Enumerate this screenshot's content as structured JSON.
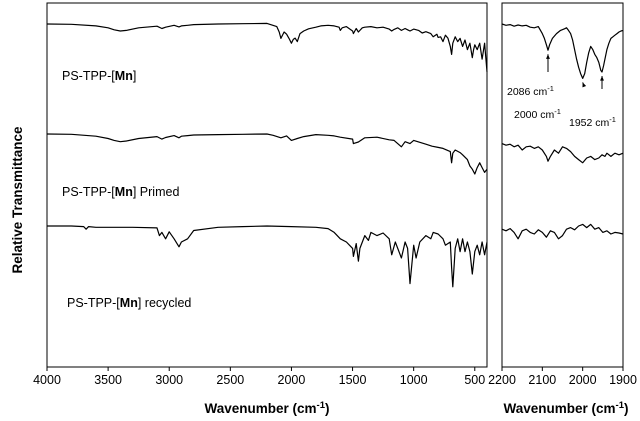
{
  "chart_data": [
    {
      "type": "line",
      "title": "",
      "xlabel": "Wavenumber (cm",
      "xlabel_sup": "-1",
      "xlabel_close": ")",
      "ylabel": "Relative Transmittance",
      "xlim": [
        4000,
        400
      ],
      "x_reversed": true,
      "x_ticks": [
        4000,
        3500,
        3000,
        2500,
        2000,
        1500,
        1000,
        500
      ],
      "y_ticks": false,
      "grid": false,
      "series": [
        {
          "name": "PS-TPP-[Mn]",
          "name_parts": [
            "PS-TPP-[",
            "Mn",
            "]"
          ],
          "offset": 3.0,
          "x": [
            4000,
            3800,
            3600,
            3500,
            3450,
            3400,
            3350,
            3250,
            3100,
            3060,
            3030,
            2960,
            2920,
            2900,
            2850,
            2800,
            2600,
            2400,
            2200,
            2120,
            2100,
            2086,
            2060,
            2040,
            2020,
            2000,
            1985,
            1970,
            1952,
            1930,
            1900,
            1860,
            1800,
            1760,
            1700,
            1650,
            1610,
            1600,
            1585,
            1550,
            1500,
            1493,
            1470,
            1452,
            1440,
            1420,
            1400,
            1350,
            1300,
            1250,
            1200,
            1180,
            1160,
            1130,
            1100,
            1070,
            1050,
            1030,
            1000,
            960,
            930,
            900,
            860,
            840,
            810,
            800,
            780,
            760,
            740,
            720,
            700,
            690,
            680,
            660,
            640,
            620,
            600,
            580,
            560,
            540,
            520,
            510,
            500,
            480,
            460,
            440,
            420,
            400
          ],
          "y": [
            0.5,
            0.49,
            0.44,
            0.38,
            0.32,
            0.28,
            0.3,
            0.38,
            0.43,
            0.36,
            0.4,
            0.46,
            0.41,
            0.44,
            0.46,
            0.48,
            0.5,
            0.51,
            0.52,
            0.42,
            0.25,
            0.05,
            0.25,
            0.18,
            0.05,
            -0.1,
            0.02,
            0.06,
            -0.05,
            0.2,
            0.28,
            0.35,
            0.4,
            0.44,
            0.46,
            0.44,
            0.4,
            0.3,
            0.38,
            0.42,
            0.28,
            0.2,
            0.36,
            0.25,
            0.3,
            0.38,
            0.4,
            0.42,
            0.38,
            0.4,
            0.34,
            0.28,
            0.33,
            0.38,
            0.3,
            0.36,
            0.32,
            0.28,
            0.34,
            0.3,
            0.22,
            0.26,
            0.2,
            0.1,
            0.18,
            0.08,
            0.1,
            -0.05,
            0.15,
            0.06,
            -0.2,
            -0.45,
            -0.1,
            0.1,
            -0.05,
            0.05,
            -0.2,
            0.0,
            -0.3,
            -0.1,
            -0.55,
            -0.3,
            -0.15,
            -0.3,
            -0.1,
            -0.6,
            -0.1,
            -1.0
          ]
        },
        {
          "name": "PS-TPP-[Mn] Primed",
          "name_parts": [
            "PS-TPP-[",
            "Mn",
            "] Primed"
          ],
          "offset": 1.5,
          "x": [
            4000,
            3800,
            3600,
            3500,
            3450,
            3400,
            3350,
            3250,
            3100,
            3060,
            3030,
            2960,
            2920,
            2900,
            2850,
            2800,
            2600,
            2400,
            2200,
            2150,
            2086,
            2040,
            2000,
            1952,
            1900,
            1800,
            1700,
            1650,
            1600,
            1500,
            1493,
            1452,
            1400,
            1300,
            1200,
            1160,
            1100,
            1070,
            1030,
            1000,
            950,
            900,
            850,
            800,
            760,
            700,
            690,
            680,
            660,
            620,
            600,
            560,
            540,
            520,
            500,
            480,
            460,
            440,
            420,
            400
          ],
          "y": [
            0.5,
            0.49,
            0.43,
            0.36,
            0.3,
            0.26,
            0.28,
            0.36,
            0.42,
            0.34,
            0.39,
            0.45,
            0.38,
            0.43,
            0.45,
            0.47,
            0.48,
            0.49,
            0.5,
            0.46,
            0.38,
            0.44,
            0.3,
            0.36,
            0.42,
            0.48,
            0.46,
            0.44,
            0.4,
            0.34,
            0.2,
            0.25,
            0.38,
            0.4,
            0.32,
            0.3,
            0.1,
            0.26,
            0.2,
            0.3,
            0.24,
            0.18,
            0.12,
            0.08,
            0.05,
            -0.05,
            -0.4,
            -0.1,
            0.0,
            -0.08,
            -0.15,
            -0.3,
            -0.5,
            -0.6,
            -0.75,
            -0.55,
            -0.4,
            -0.55,
            -0.7,
            -0.6
          ]
        },
        {
          "name": "PS-TPP-[Mn] recycled",
          "name_parts": [
            "PS-TPP-[",
            "Mn",
            "] recycled"
          ],
          "offset": 0.0,
          "x": [
            4000,
            3800,
            3700,
            3680,
            3660,
            3600,
            3500,
            3400,
            3300,
            3100,
            3080,
            3060,
            3030,
            3000,
            2960,
            2920,
            2900,
            2850,
            2800,
            2600,
            2400,
            2200,
            2000,
            1800,
            1700,
            1650,
            1600,
            1550,
            1500,
            1493,
            1470,
            1452,
            1440,
            1400,
            1370,
            1350,
            1300,
            1250,
            1200,
            1180,
            1150,
            1100,
            1070,
            1050,
            1030,
            1000,
            980,
            950,
            900,
            860,
            840,
            800,
            760,
            740,
            700,
            690,
            680,
            660,
            640,
            620,
            600,
            580,
            560,
            540,
            520,
            500,
            480,
            460,
            440,
            420,
            400
          ],
          "y": [
            0.5,
            0.5,
            0.48,
            0.4,
            0.48,
            0.46,
            0.46,
            0.46,
            0.46,
            0.44,
            0.2,
            0.3,
            0.1,
            0.32,
            0.1,
            -0.15,
            0.0,
            0.1,
            0.36,
            0.46,
            0.48,
            0.5,
            0.48,
            0.46,
            0.42,
            0.3,
            0.1,
            0.0,
            -0.2,
            -0.45,
            -0.05,
            -0.6,
            -0.2,
            0.2,
            0.05,
            0.3,
            0.2,
            0.28,
            0.1,
            -0.4,
            0.0,
            -0.5,
            0.0,
            -0.2,
            -1.3,
            -0.1,
            -0.5,
            0.0,
            0.2,
            0.1,
            0.3,
            0.25,
            0.1,
            -0.1,
            0.0,
            -0.8,
            -1.4,
            -0.2,
            0.1,
            -0.3,
            0.1,
            -0.3,
            0.0,
            -0.3,
            -1.0,
            -0.3,
            -0.1,
            -0.4,
            0.0,
            -0.4,
            0.0
          ]
        }
      ],
      "series_label_style": "text beside each trace"
    },
    {
      "type": "line",
      "title": "",
      "xlabel": "Wavenumber (cm",
      "xlabel_sup": "-1",
      "xlabel_close": ")",
      "xlim": [
        2200,
        1900
      ],
      "x_reversed": true,
      "x_ticks": [
        2200,
        2100,
        2000,
        1900
      ],
      "y_ticks": false,
      "grid": false,
      "series": [
        {
          "name": "PS-TPP-[Mn]",
          "offset": 3.0,
          "x": [
            2200,
            2190,
            2180,
            2170,
            2160,
            2150,
            2140,
            2130,
            2120,
            2110,
            2100,
            2095,
            2090,
            2086,
            2082,
            2075,
            2065,
            2055,
            2045,
            2040,
            2035,
            2030,
            2025,
            2020,
            2015,
            2010,
            2005,
            2000,
            1995,
            1990,
            1985,
            1980,
            1975,
            1970,
            1965,
            1960,
            1955,
            1952,
            1948,
            1945,
            1940,
            1935,
            1930,
            1925,
            1920,
            1915,
            1910,
            1905,
            1900
          ],
          "y": [
            0.5,
            0.46,
            0.48,
            0.43,
            0.47,
            0.44,
            0.46,
            0.4,
            0.38,
            0.42,
            0.2,
            0.05,
            -0.15,
            -0.32,
            -0.15,
            0.05,
            0.2,
            0.3,
            0.35,
            0.38,
            0.3,
            0.2,
            0.0,
            -0.3,
            -0.6,
            -0.85,
            -1.05,
            -1.2,
            -1.05,
            -0.7,
            -0.4,
            -0.2,
            -0.3,
            -0.45,
            -0.55,
            -0.7,
            -0.95,
            -1.0,
            -0.8,
            -0.6,
            -0.3,
            -0.1,
            0.05,
            0.1,
            0.15,
            0.2,
            0.25,
            0.28,
            0.3
          ]
        },
        {
          "name": "PS-TPP-[Mn] Primed",
          "offset": 1.5,
          "x": [
            2200,
            2190,
            2180,
            2170,
            2160,
            2150,
            2140,
            2130,
            2120,
            2110,
            2100,
            2090,
            2086,
            2080,
            2070,
            2060,
            2050,
            2040,
            2030,
            2020,
            2010,
            2000,
            1990,
            1980,
            1970,
            1960,
            1952,
            1945,
            1940,
            1930,
            1920,
            1910,
            1900
          ],
          "y": [
            0.2,
            0.15,
            0.18,
            0.1,
            0.15,
            0.0,
            0.1,
            0.12,
            0.05,
            0.1,
            0.0,
            -0.2,
            -0.35,
            -0.2,
            0.0,
            -0.1,
            0.1,
            0.05,
            -0.05,
            -0.2,
            -0.3,
            -0.4,
            -0.25,
            -0.2,
            -0.3,
            -0.25,
            -0.15,
            -0.2,
            -0.1,
            -0.2,
            -0.1,
            -0.15,
            -0.1
          ]
        },
        {
          "name": "PS-TPP-[Mn] recycled",
          "offset": 0.0,
          "x": [
            2200,
            2190,
            2180,
            2170,
            2160,
            2150,
            2140,
            2130,
            2120,
            2110,
            2100,
            2090,
            2080,
            2070,
            2060,
            2050,
            2040,
            2030,
            2020,
            2010,
            2000,
            1990,
            1980,
            1970,
            1960,
            1950,
            1940,
            1930,
            1920,
            1910,
            1900
          ],
          "y": [
            0.4,
            0.35,
            0.42,
            0.3,
            0.1,
            0.35,
            0.4,
            0.3,
            0.25,
            0.38,
            0.3,
            0.15,
            0.35,
            0.3,
            0.1,
            0.2,
            0.4,
            0.45,
            0.38,
            0.5,
            0.55,
            0.45,
            0.55,
            0.4,
            0.45,
            0.3,
            0.35,
            0.25,
            0.3,
            0.28,
            0.25
          ]
        }
      ],
      "annotations": [
        {
          "id": "ann2086",
          "number": "2086 cm",
          "sup": "-1",
          "points_to_x": 2086,
          "series": 0
        },
        {
          "id": "ann2000",
          "number": "2000 cm",
          "sup": "-1",
          "points_to_x": 2000,
          "series": 0
        },
        {
          "id": "ann1952",
          "number": "1952 cm",
          "sup": "-1",
          "points_to_x": 1952,
          "series": 0
        }
      ]
    }
  ]
}
